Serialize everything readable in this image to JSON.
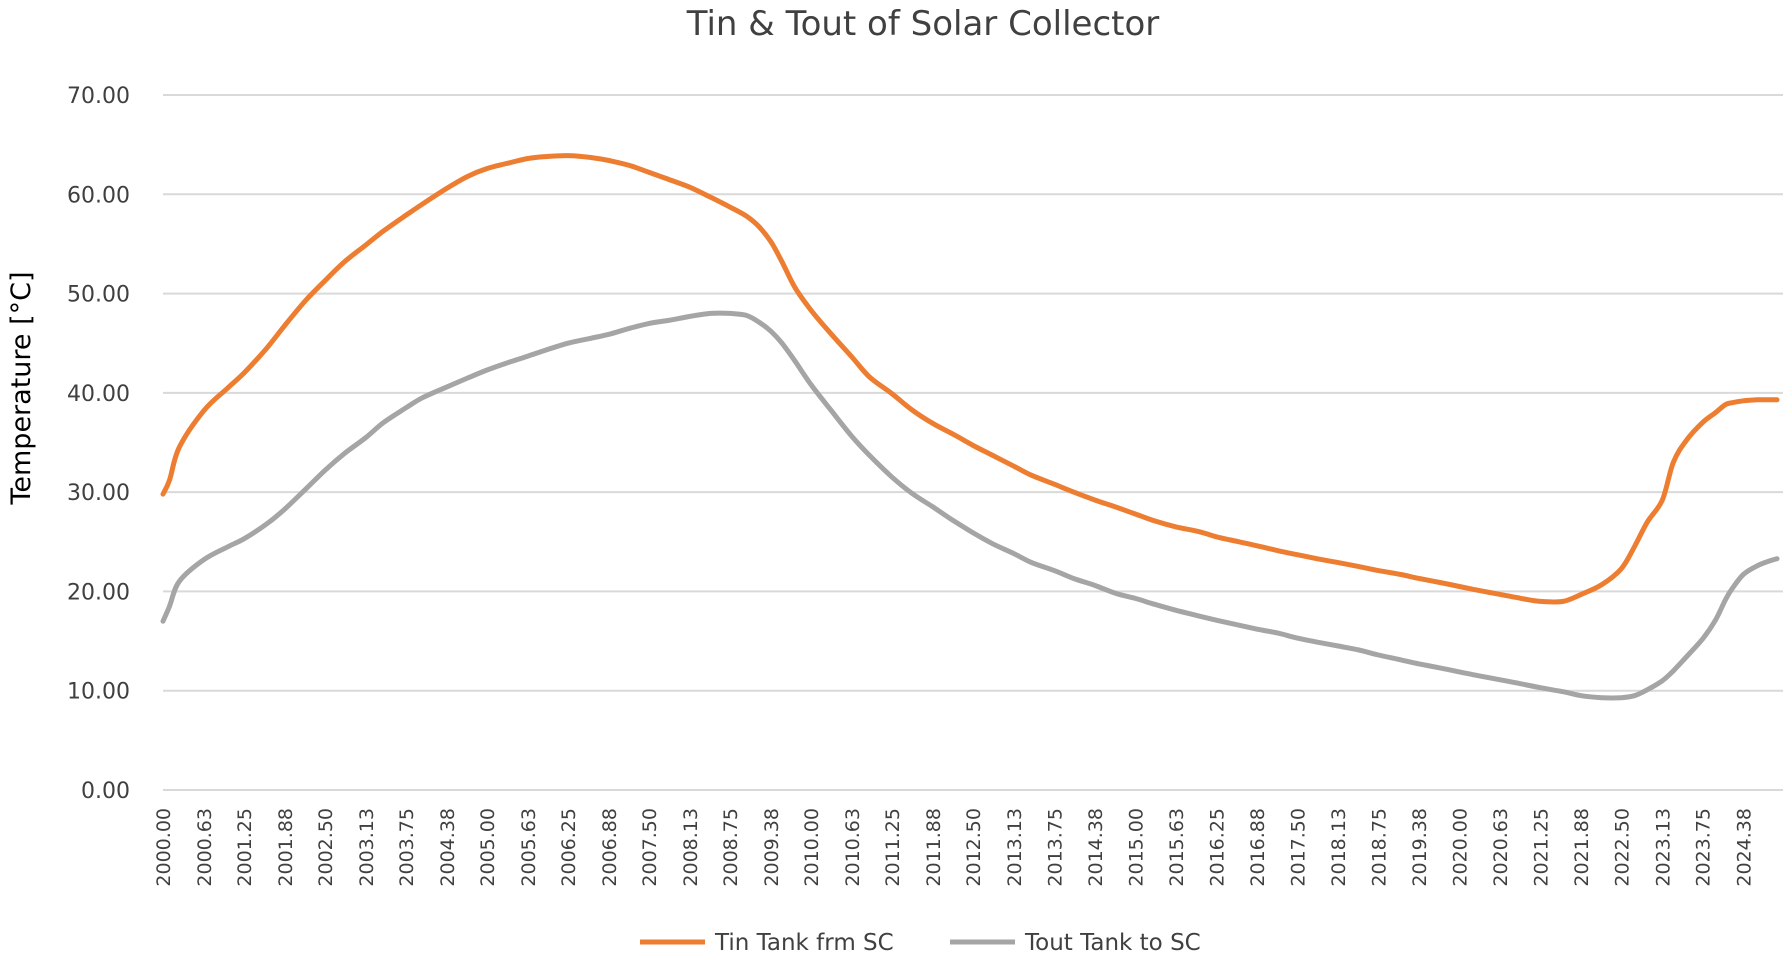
{
  "chart_data": {
    "type": "line",
    "title": "Tin & Tout of Solar Collector",
    "xlabel": "",
    "ylabel": "Temperature  [°C]",
    "ylim": [
      0,
      70
    ],
    "y_ticks": [
      "0.00",
      "10.00",
      "20.00",
      "30.00",
      "40.00",
      "50.00",
      "60.00",
      "70.00"
    ],
    "x_tick_labels": [
      "2000.00",
      "2000.63",
      "2001.25",
      "2001.88",
      "2002.50",
      "2003.13",
      "2003.75",
      "2004.38",
      "2005.00",
      "2005.63",
      "2006.25",
      "2006.88",
      "2007.50",
      "2008.13",
      "2008.75",
      "2009.38",
      "2010.00",
      "2010.63",
      "2011.25",
      "2011.88",
      "2012.50",
      "2013.13",
      "2013.75",
      "2014.38",
      "2015.00",
      "2015.63",
      "2016.25",
      "2016.88",
      "2017.50",
      "2018.13",
      "2018.75",
      "2019.38",
      "2020.00",
      "2020.63",
      "2021.25",
      "2021.88",
      "2022.50",
      "2023.13",
      "2023.75",
      "2024.38"
    ],
    "xlim": [
      2000.0,
      2024.9
    ],
    "grid": true,
    "legend_position": "bottom",
    "series": [
      {
        "name": "Tin Tank frm SC",
        "color": "#ED7D31",
        "x": [
          2000.0,
          2000.1,
          2000.25,
          2000.63,
          2001.0,
          2001.25,
          2001.6,
          2001.88,
          2002.2,
          2002.5,
          2002.8,
          2003.13,
          2003.4,
          2003.75,
          2004.0,
          2004.38,
          2004.7,
          2005.0,
          2005.3,
          2005.63,
          2005.9,
          2006.25,
          2006.6,
          2006.88,
          2007.2,
          2007.5,
          2007.8,
          2008.13,
          2008.45,
          2008.75,
          2009.0,
          2009.2,
          2009.38,
          2009.55,
          2009.75,
          2010.0,
          2010.3,
          2010.63,
          2010.9,
          2011.25,
          2011.55,
          2011.88,
          2012.2,
          2012.5,
          2012.8,
          2013.13,
          2013.4,
          2013.75,
          2014.05,
          2014.38,
          2014.7,
          2015.0,
          2015.3,
          2015.63,
          2016.0,
          2016.25,
          2016.6,
          2016.88,
          2017.2,
          2017.5,
          2017.8,
          2018.13,
          2018.45,
          2018.75,
          2019.1,
          2019.38,
          2019.7,
          2020.0,
          2020.3,
          2020.63,
          2020.95,
          2021.25,
          2021.6,
          2021.88,
          2022.2,
          2022.5,
          2022.7,
          2022.9,
          2023.13,
          2023.3,
          2023.5,
          2023.75,
          2023.95,
          2024.1,
          2024.2,
          2024.38,
          2024.6,
          2024.8,
          2024.9
        ],
        "values": [
          29.8,
          31.2,
          34.5,
          38.2,
          40.5,
          42.0,
          44.5,
          46.8,
          49.3,
          51.3,
          53.2,
          54.9,
          56.3,
          57.9,
          59.0,
          60.6,
          61.8,
          62.6,
          63.1,
          63.6,
          63.8,
          63.9,
          63.7,
          63.4,
          62.9,
          62.2,
          61.5,
          60.7,
          59.7,
          58.7,
          57.8,
          56.7,
          55.2,
          53.2,
          50.6,
          48.3,
          46.0,
          43.6,
          41.6,
          39.9,
          38.3,
          36.9,
          35.8,
          34.7,
          33.7,
          32.6,
          31.7,
          30.8,
          30.0,
          29.2,
          28.5,
          27.8,
          27.1,
          26.5,
          26.0,
          25.5,
          25.0,
          24.6,
          24.1,
          23.7,
          23.3,
          22.9,
          22.5,
          22.1,
          21.7,
          21.3,
          20.9,
          20.5,
          20.1,
          19.7,
          19.3,
          19.0,
          19.0,
          19.7,
          20.7,
          22.3,
          24.5,
          27.0,
          29.2,
          33.0,
          35.2,
          37.0,
          38.0,
          38.8,
          39.0,
          39.2,
          39.3,
          39.3,
          39.3
        ]
      },
      {
        "name": "Tout Tank to SC",
        "color": "#A5A5A5",
        "x": [
          2000.0,
          2000.1,
          2000.25,
          2000.63,
          2001.0,
          2001.25,
          2001.6,
          2001.88,
          2002.2,
          2002.5,
          2002.8,
          2003.13,
          2003.4,
          2003.75,
          2004.0,
          2004.38,
          2004.7,
          2005.0,
          2005.3,
          2005.63,
          2005.9,
          2006.25,
          2006.6,
          2006.88,
          2007.2,
          2007.5,
          2007.8,
          2008.13,
          2008.45,
          2008.75,
          2009.0,
          2009.2,
          2009.38,
          2009.55,
          2009.75,
          2010.0,
          2010.3,
          2010.63,
          2010.9,
          2011.25,
          2011.55,
          2011.88,
          2012.2,
          2012.5,
          2012.8,
          2013.13,
          2013.4,
          2013.75,
          2014.05,
          2014.38,
          2014.7,
          2015.0,
          2015.3,
          2015.63,
          2016.0,
          2016.25,
          2016.6,
          2016.88,
          2017.2,
          2017.5,
          2017.8,
          2018.13,
          2018.45,
          2018.75,
          2019.1,
          2019.38,
          2019.7,
          2020.0,
          2020.3,
          2020.63,
          2020.95,
          2021.25,
          2021.6,
          2021.88,
          2022.2,
          2022.5,
          2022.7,
          2022.9,
          2023.13,
          2023.3,
          2023.5,
          2023.75,
          2023.95,
          2024.1,
          2024.2,
          2024.38,
          2024.6,
          2024.8,
          2024.9
        ],
        "values": [
          17.0,
          18.5,
          21.0,
          23.2,
          24.5,
          25.3,
          26.8,
          28.3,
          30.3,
          32.2,
          33.9,
          35.5,
          37.0,
          38.5,
          39.5,
          40.6,
          41.5,
          42.3,
          43.0,
          43.7,
          44.3,
          45.0,
          45.5,
          45.9,
          46.5,
          47.0,
          47.3,
          47.7,
          48.0,
          48.0,
          47.8,
          47.1,
          46.2,
          45.0,
          43.2,
          40.8,
          38.3,
          35.6,
          33.7,
          31.5,
          29.9,
          28.5,
          27.1,
          25.9,
          24.8,
          23.8,
          22.9,
          22.1,
          21.3,
          20.6,
          19.8,
          19.3,
          18.7,
          18.1,
          17.5,
          17.1,
          16.6,
          16.2,
          15.8,
          15.3,
          14.9,
          14.5,
          14.1,
          13.6,
          13.1,
          12.7,
          12.3,
          11.9,
          11.5,
          11.1,
          10.7,
          10.3,
          9.9,
          9.5,
          9.3,
          9.3,
          9.5,
          10.1,
          11.0,
          12.0,
          13.4,
          15.2,
          17.1,
          19.1,
          20.2,
          21.7,
          22.6,
          23.1,
          23.3
        ]
      }
    ]
  }
}
